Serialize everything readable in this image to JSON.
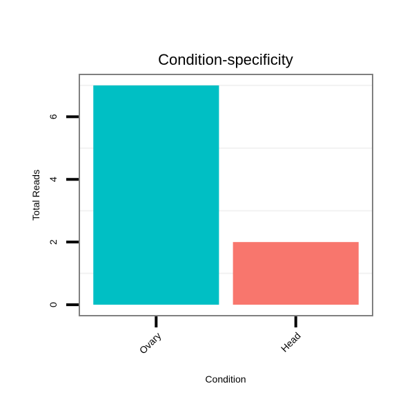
{
  "chart_data": {
    "type": "bar",
    "title": "Condition-specificity",
    "xlabel": "Condition",
    "ylabel": "Total Reads",
    "categories": [
      "Ovary",
      "Head"
    ],
    "values": [
      7,
      2
    ],
    "colors": [
      "#00BFC4",
      "#F8766D"
    ],
    "ylim": [
      -0.35,
      7.35
    ],
    "yticks": [
      0,
      2,
      4,
      6
    ],
    "ytick_labels": [
      "0",
      "2",
      "4",
      "6"
    ],
    "minor_gridlines": [
      1,
      3,
      5,
      7
    ],
    "grid": true,
    "legend": "none"
  }
}
